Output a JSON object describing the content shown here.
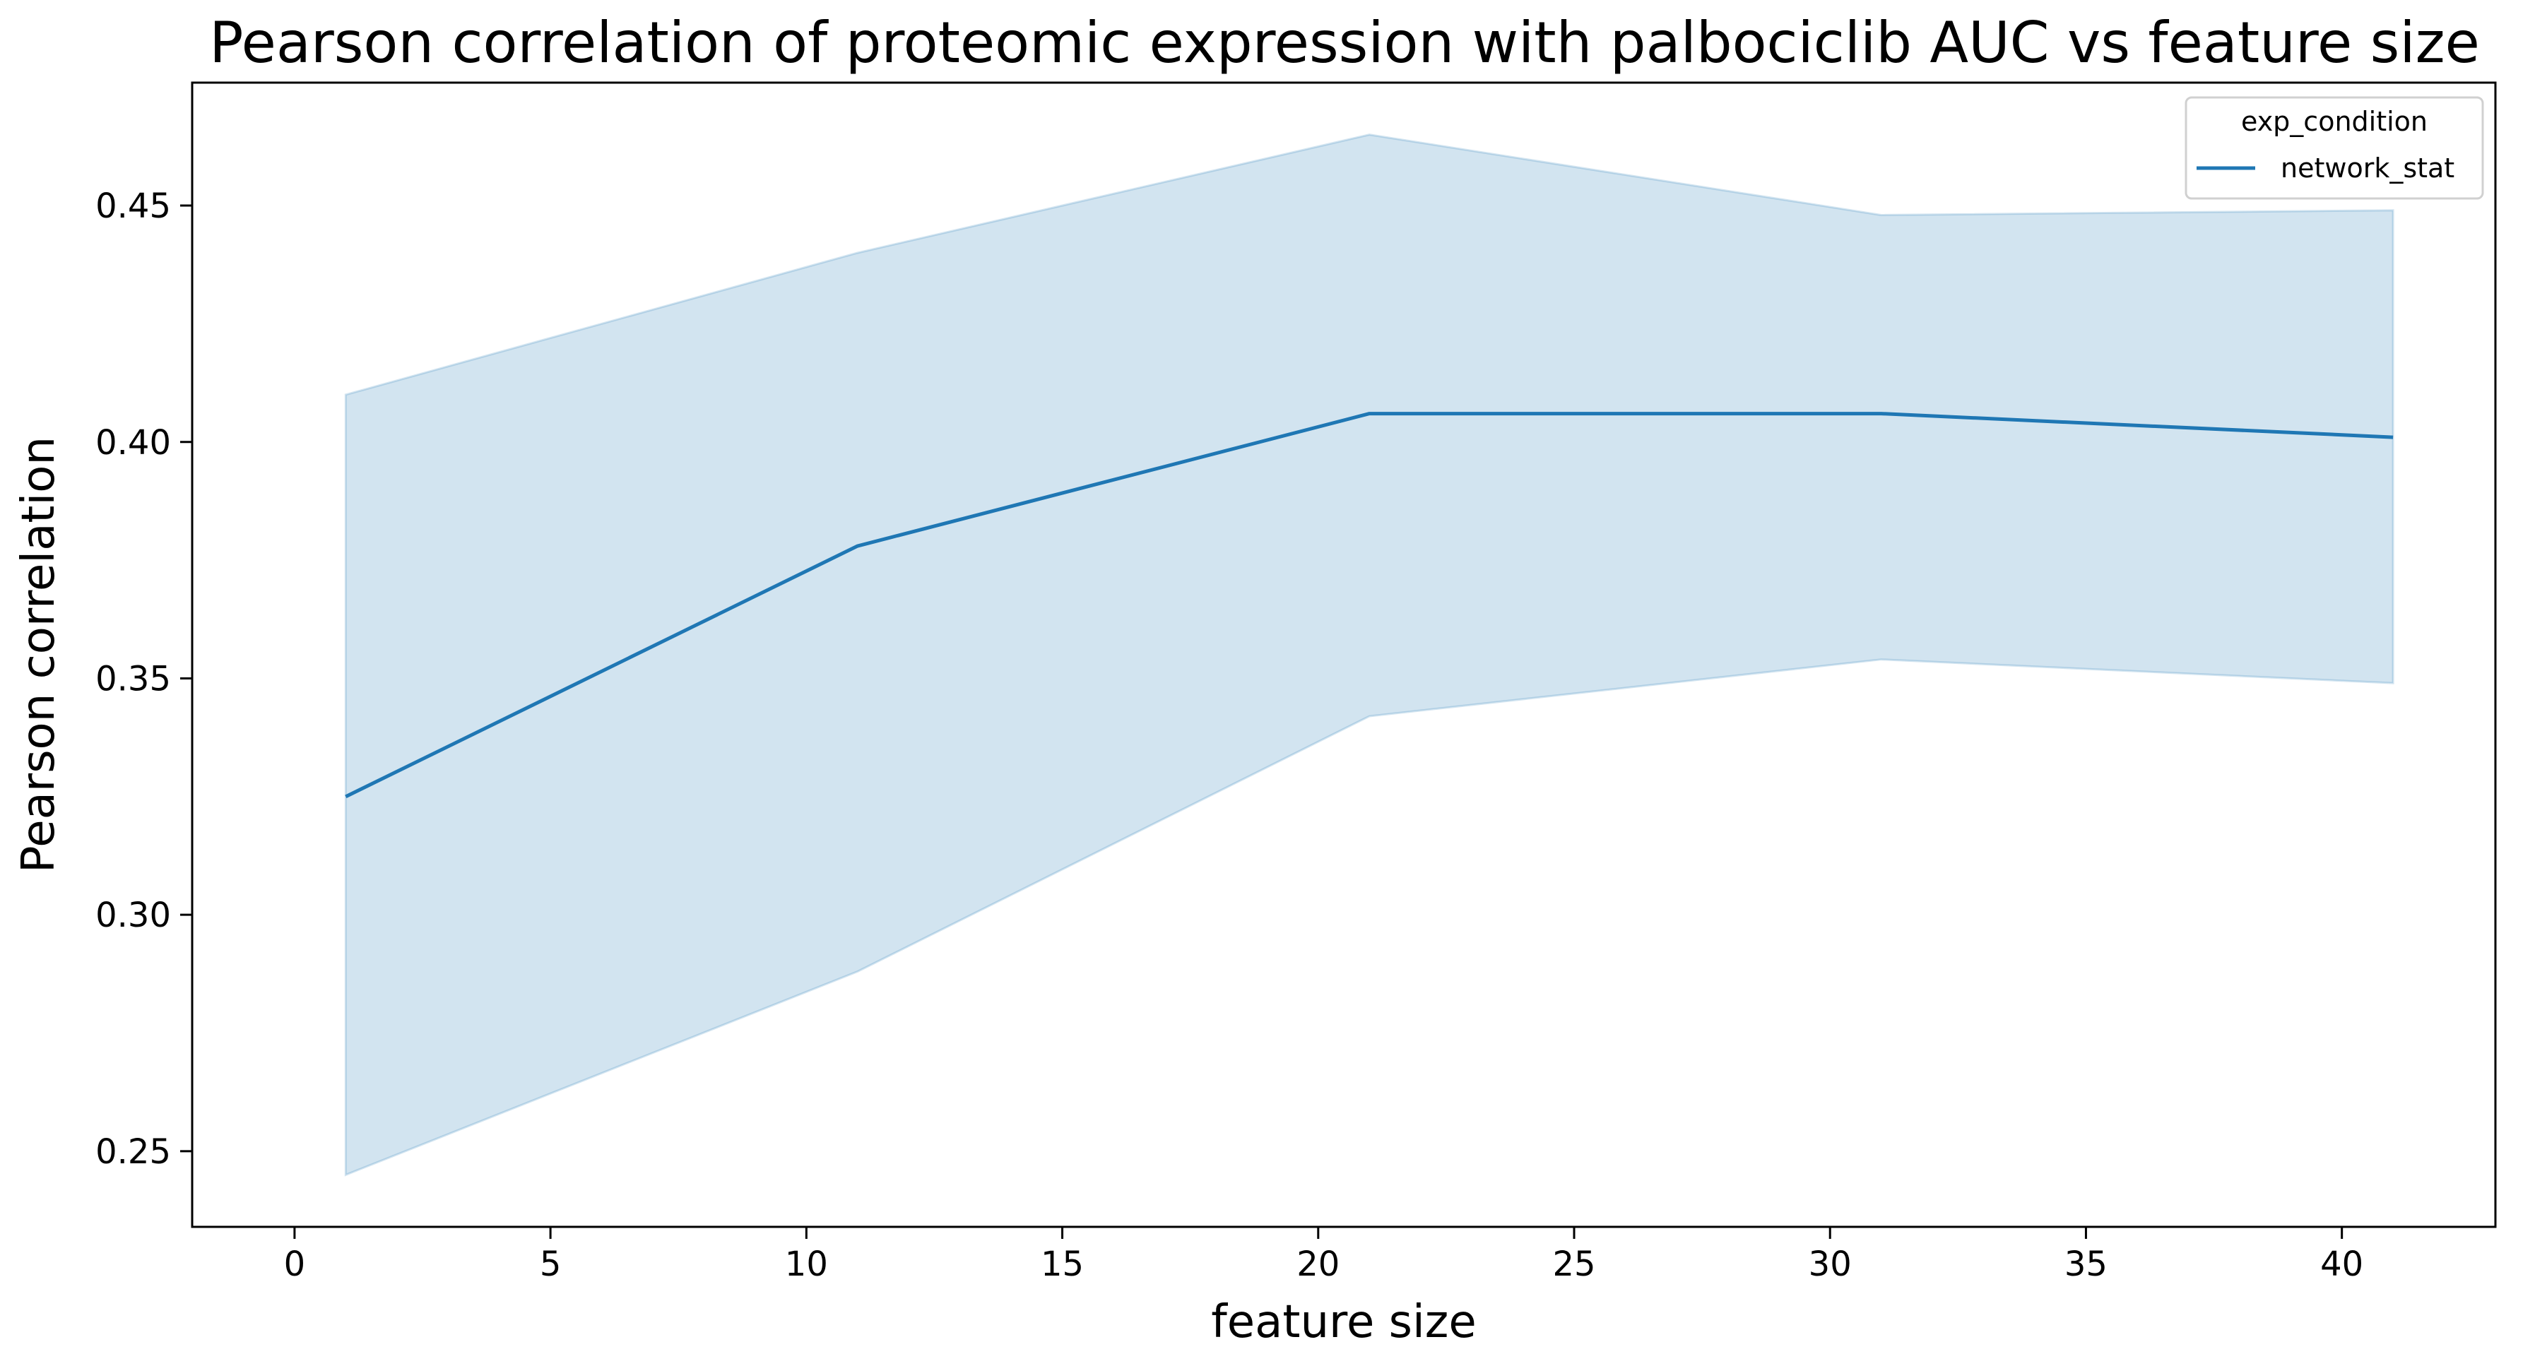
{
  "chart_data": {
    "type": "line",
    "title": "Pearson correlation of proteomic expression with palbociclib AUC vs feature size",
    "xlabel": "feature size",
    "ylabel": "Pearson correlation",
    "xlim": [
      -2,
      43
    ],
    "ylim": [
      0.234,
      0.476
    ],
    "xticks": [
      0,
      5,
      10,
      15,
      20,
      25,
      30,
      35,
      40
    ],
    "xtick_labels": [
      "0",
      "5",
      "10",
      "15",
      "20",
      "25",
      "30",
      "35",
      "40"
    ],
    "yticks": [
      0.25,
      0.3,
      0.35,
      0.4,
      0.45
    ],
    "ytick_labels": [
      "0.25",
      "0.30",
      "0.35",
      "0.40",
      "0.45"
    ],
    "grid": false,
    "legend": {
      "title": "exp_condition",
      "position": "top-right",
      "entries": [
        "network_stat"
      ]
    },
    "series": [
      {
        "name": "network_stat",
        "color": "#1f77b4",
        "band_color": "#1f77b4",
        "x": [
          1,
          11,
          21,
          31,
          41
        ],
        "y": [
          0.325,
          0.378,
          0.406,
          0.406,
          0.401
        ],
        "ci_lower": [
          0.245,
          0.288,
          0.342,
          0.354,
          0.349
        ],
        "ci_upper": [
          0.41,
          0.44,
          0.465,
          0.448,
          0.449
        ]
      }
    ]
  }
}
